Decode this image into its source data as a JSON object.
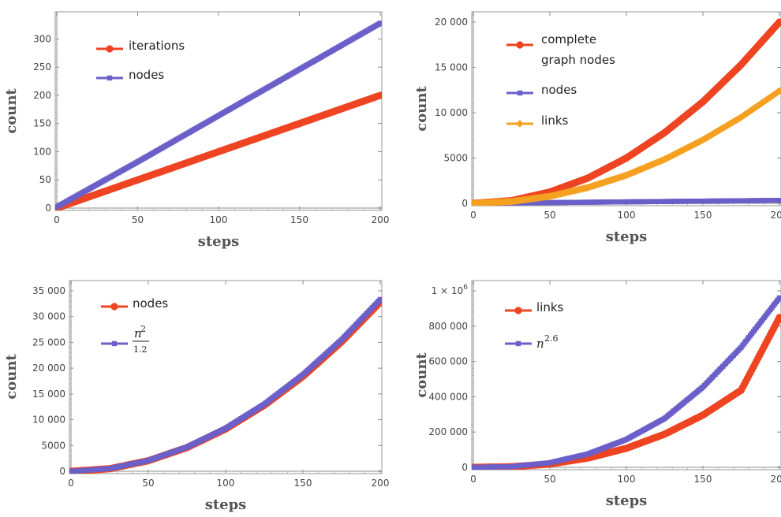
{
  "chart_data": [
    {
      "type": "scatter",
      "xlabel": "steps",
      "ylabel": "count",
      "xlim": [
        0,
        200
      ],
      "ylim": [
        0,
        330
      ],
      "xticks": [
        0,
        50,
        100,
        150,
        200
      ],
      "yticks": [
        0,
        50,
        100,
        150,
        200,
        250,
        300
      ],
      "yticklabels": [
        "0",
        "50",
        "100",
        "150",
        "200",
        "250",
        "300"
      ],
      "legend_position": "top-left",
      "series": [
        {
          "name": "iterations",
          "color": "#ee4422",
          "marker": "circle",
          "x": [
            0,
            25,
            50,
            75,
            100,
            125,
            150,
            175,
            200
          ],
          "y": [
            0,
            25,
            50,
            75,
            100,
            125,
            150,
            175,
            200
          ]
        },
        {
          "name": "nodes",
          "color": "#6b5fc9",
          "marker": "square",
          "x": [
            0,
            25,
            50,
            75,
            100,
            125,
            150,
            175,
            200
          ],
          "y": [
            2,
            42,
            82,
            123,
            164,
            205,
            246,
            287,
            328
          ]
        }
      ]
    },
    {
      "type": "scatter",
      "xlabel": "steps",
      "ylabel": "count",
      "xlim": [
        0,
        200
      ],
      "ylim": [
        0,
        20000
      ],
      "xticks": [
        0,
        50,
        100,
        150,
        200
      ],
      "yticks": [
        0,
        5000,
        10000,
        15000,
        20000
      ],
      "yticklabels": [
        "0",
        "5000",
        "10 000",
        "15 000",
        "20 000"
      ],
      "legend_position": "top-left",
      "series": [
        {
          "name": "complete graph nodes",
          "color": "#ee4422",
          "marker": "circle",
          "x": [
            0,
            25,
            50,
            75,
            100,
            125,
            150,
            175,
            200
          ],
          "y": [
            0,
            300,
            1250,
            2800,
            5000,
            7800,
            11200,
            15300,
            20000
          ]
        },
        {
          "name": "nodes",
          "color": "#6b5fc9",
          "marker": "square",
          "x": [
            0,
            25,
            50,
            75,
            100,
            125,
            150,
            175,
            200
          ],
          "y": [
            2,
            42,
            82,
            123,
            164,
            205,
            246,
            287,
            328
          ]
        },
        {
          "name": "links",
          "color": "#f5a020",
          "marker": "diamond",
          "x": [
            0,
            25,
            50,
            75,
            100,
            125,
            150,
            175,
            200
          ],
          "y": [
            0,
            200,
            780,
            1750,
            3100,
            4850,
            7000,
            9500,
            12400
          ]
        }
      ]
    },
    {
      "type": "scatter",
      "xlabel": "steps",
      "ylabel": "count",
      "xlim": [
        0,
        200
      ],
      "ylim": [
        0,
        35000
      ],
      "xticks": [
        0,
        50,
        100,
        150,
        200
      ],
      "yticks": [
        0,
        5000,
        10000,
        15000,
        20000,
        25000,
        30000,
        35000
      ],
      "yticklabels": [
        "0",
        "5000",
        "10 000",
        "15 000",
        "20 000",
        "25 000",
        "30 000",
        "35 000"
      ],
      "legend_position": "top-left",
      "series": [
        {
          "name": "nodes",
          "color": "#ee4422",
          "marker": "circle",
          "x": [
            0,
            25,
            50,
            75,
            100,
            125,
            150,
            175,
            200
          ],
          "y": [
            0,
            500,
            2050,
            4600,
            8200,
            12800,
            18400,
            25100,
            32800
          ]
        },
        {
          "name": "n^2/1.2",
          "color": "#6b5fc9",
          "marker": "square",
          "x": [
            0,
            25,
            50,
            75,
            100,
            125,
            150,
            175,
            200
          ],
          "y": [
            0,
            521,
            2083,
            4688,
            8333,
            13021,
            18750,
            25521,
            33333
          ]
        }
      ]
    },
    {
      "type": "scatter",
      "xlabel": "steps",
      "ylabel": "count",
      "xlim": [
        0,
        200
      ],
      "ylim": [
        0,
        1000000
      ],
      "xticks": [
        0,
        50,
        100,
        150,
        200
      ],
      "yticks": [
        0,
        200000,
        400000,
        600000,
        800000,
        1000000
      ],
      "yticklabels": [
        "0",
        "200 000",
        "400 000",
        "600 000",
        "800 000",
        "1 × 10^6"
      ],
      "legend_position": "top-left",
      "series": [
        {
          "name": "links",
          "color": "#ee4422",
          "marker": "circle",
          "x": [
            0,
            25,
            50,
            75,
            100,
            125,
            150,
            175,
            200
          ],
          "y": [
            0,
            3500,
            19000,
            53000,
            108000,
            188000,
            296000,
            437000,
            849000
          ]
        },
        {
          "name": "n^2.6",
          "color": "#6b5fc9",
          "marker": "square",
          "x": [
            0,
            25,
            50,
            75,
            100,
            125,
            150,
            175,
            200
          ],
          "y": [
            0,
            4300,
            26000,
            76000,
            158000,
            277000,
            455000,
            680000,
            960000
          ]
        }
      ]
    }
  ],
  "legend_labels": {
    "p1": [
      "iterations",
      "nodes"
    ],
    "p2": [
      "complete",
      "graph nodes",
      "nodes",
      "links"
    ],
    "p3": [
      "nodes",
      "n",
      "2",
      "1.2"
    ],
    "p4": [
      "links",
      "n",
      "2.6"
    ]
  }
}
